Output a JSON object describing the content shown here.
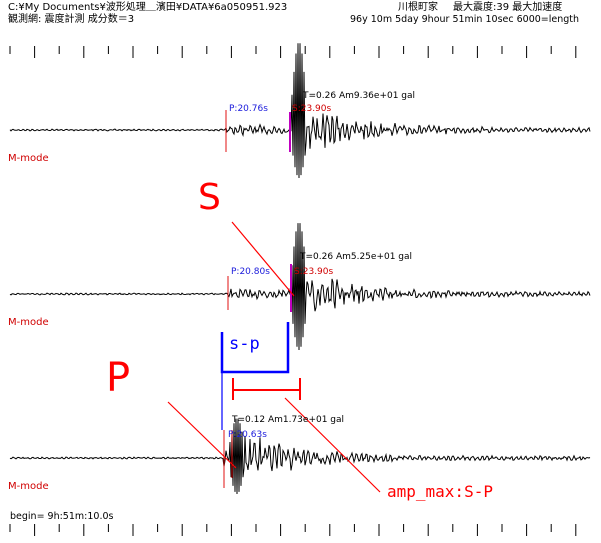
{
  "header": {
    "path": "C:¥My Documents¥波形処理＿濱田¥DATA¥6a050951.923",
    "station": "川根町家",
    "intensity": "最大震度:39 最大加速度",
    "network": "観測網: 震度計測 成分数＝3",
    "datetime": "96y 10m 5day 9hour 51min 10sec 6000=length"
  },
  "traces": [
    {
      "mode_label": "M-mode",
      "p_label": "P:20.76s",
      "s_label": "S:23.90s",
      "amp_label": "T=0.26 Am9.36e+01 gal"
    },
    {
      "mode_label": "M-mode",
      "p_label": "P:20.80s",
      "s_label": "S:23.90s",
      "amp_label": "T=0.26 Am5.25e+01 gal"
    },
    {
      "mode_label": "M-mode",
      "p_label": "P:20.63s",
      "s_label": "",
      "amp_label": "T=0.12 Am1.73e+01 gal"
    }
  ],
  "annotations": {
    "s_marker": "S",
    "p_marker": "P",
    "sp_label": "s-p",
    "amp_max_label": "amp_max:S-P"
  },
  "footer": {
    "begin": "begin= 9h:51m:10.0s"
  },
  "colors": {
    "waveform": "#000000",
    "p_pick": "#1a1adb",
    "s_pick": "#d00000",
    "annotation_red": "#ff0000",
    "annotation_blue": "#0000ff"
  }
}
